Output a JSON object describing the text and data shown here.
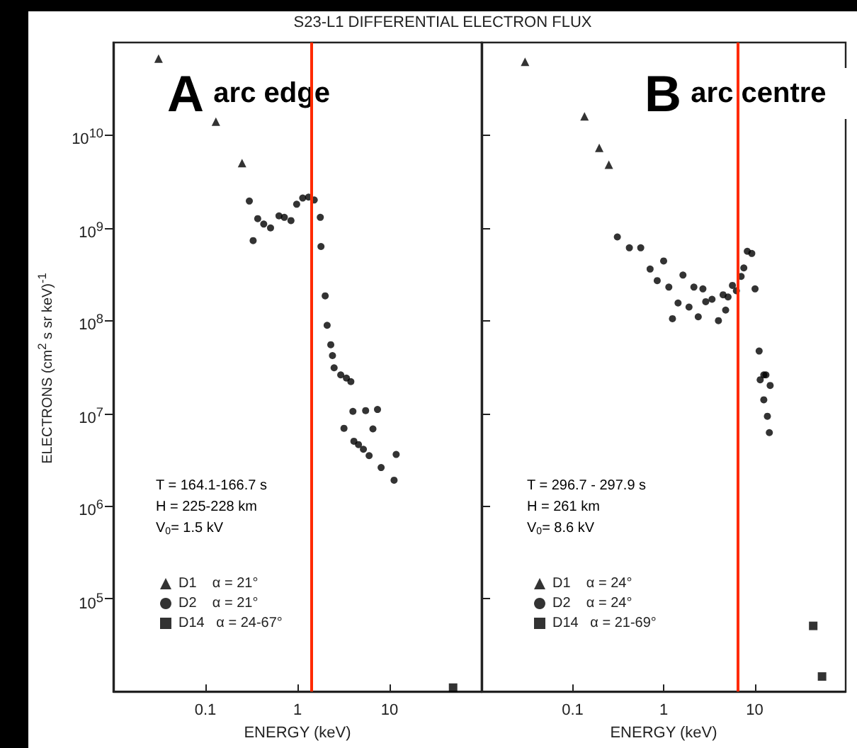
{
  "chart_data": [
    {
      "type": "scatter",
      "title": "S23-L1  DIFFERENTIAL ELECTRON FLUX",
      "xlabel": "ENERGY (keV)",
      "ylabel": "ELECTRONS (cm$^{2}$ s sr keV)$^{-1}$",
      "log": "xy",
      "legend": "bottom left",
      "xlim": [
        0.01,
        100
      ],
      "xticks": [
        0.1,
        1,
        10
      ],
      "ylim": [
        10000,
        100000000000
      ],
      "yticks": [
        {
          "value": 100000,
          "label": "10$^{5}$"
        },
        {
          "value": 1000000,
          "label": "10$^{6}$"
        },
        {
          "value": 10000000,
          "label": "10$^{7}$"
        },
        {
          "value": 100000000,
          "label": "10$^{8}$"
        },
        {
          "value": 1000000000,
          "label": "10$^{9}$"
        },
        {
          "value": 10000000000,
          "label": "10$^{10}$"
        }
      ],
      "annotations": [
        "A arc edge",
        "T = 164.1-166.7 s",
        "H = 225-228 km",
        "V$_{0}$= 1.5 kV"
      ],
      "ref_lines": [
        {
          "axis": "x",
          "value": 1.4,
          "color": "#ff2a00"
        }
      ],
      "series": [
        {
          "name": "D1    α = 21°",
          "color": "#000000",
          "marker": "triangle",
          "x": [
            0.031,
            0.13,
            0.25
          ],
          "values": [
            67000000000,
            14000000000,
            5000000000
          ]
        },
        {
          "name": "D2    α = 21°",
          "color": "#000000",
          "marker": "circle",
          "x": [
            0.3,
            0.33,
            0.37,
            0.43,
            0.51,
            0.63,
            0.72,
            0.85,
            0.98,
            1.14,
            1.32,
            1.52,
            1.77,
            1.8,
            2.0,
            2.1,
            2.3,
            2.4,
            2.5,
            2.95,
            3.4,
            3.8,
            4.0,
            5.5,
            7.4,
            3.2,
            6.6,
            4.1,
            4.6,
            5.2,
            6.0,
            8.1,
            11.8,
            11.2
          ],
          "values": [
            1950000000,
            730000000,
            1260000000,
            1100000000,
            1000000000,
            1350000000,
            1300000000,
            1200000000,
            1800000000,
            2100000000,
            2150000000,
            2000000000,
            1300000000,
            630000000,
            185000000,
            89000000,
            55000000,
            42000000,
            31000000,
            26000000,
            24000000,
            22000000,
            10500000,
            10700000,
            11000000,
            6900000,
            6800000,
            5000000,
            4600000,
            4100000,
            3500000,
            2600000,
            3600000,
            1900000
          ]
        },
        {
          "name": "D14   α = 24-67°",
          "color": "#000000",
          "marker": "square",
          "x": [
            49
          ],
          "values": [
            11000
          ]
        }
      ]
    },
    {
      "type": "scatter",
      "xlabel": "ENERGY (keV)",
      "log": "xy",
      "legend": "bottom left",
      "tick_labels": "x",
      "xlim": [
        0.01,
        100
      ],
      "xticks": [
        0.1,
        1,
        10
      ],
      "ylim": [
        10000,
        100000000000
      ],
      "yticks": [
        {
          "value": 100000,
          "label": "10$^{5}$"
        },
        {
          "value": 1000000,
          "label": "10$^{6}$"
        },
        {
          "value": 10000000,
          "label": "10$^{7}$"
        },
        {
          "value": 100000000,
          "label": "10$^{8}$"
        },
        {
          "value": 1000000000,
          "label": "10$^{9}$"
        },
        {
          "value": 10000000000,
          "label": "10$^{10}$"
        }
      ],
      "annotations": [
        "B arc centre",
        "T = 296.7 - 297.9 s",
        "H = 261 km",
        "V$_{0}$= 8.6 kV"
      ],
      "ref_lines": [
        {
          "axis": "x",
          "value": 6.6,
          "color": "#ff2a00"
        }
      ],
      "series": [
        {
          "name": "D1    α = 24°",
          "color": "#000000",
          "marker": "triangle",
          "x": [
            0.03,
            0.135,
            0.196,
            0.25
          ],
          "values": [
            62000000000,
            16000000000,
            7300000000,
            4800000000
          ]
        },
        {
          "name": "D2    α = 24°",
          "color": "#000000",
          "marker": "circle",
          "x": [
            0.31,
            0.42,
            0.56,
            0.71,
            1.0,
            0.85,
            1.14,
            1.63,
            1.44,
            1.9,
            1.25,
            2.15,
            2.7,
            2.4,
            2.9,
            3.4,
            4.0,
            4.5,
            5.1,
            4.8,
            5.7,
            6.3,
            7.1,
            7.6,
            8.3,
            9.3,
            10.1,
            11.2,
            12.6,
            11.5,
            13.3,
            14.8,
            12.6,
            13.8,
            14.5
          ],
          "values": [
            800000000,
            610000000,
            610000000,
            360000000,
            440000000,
            270000000,
            230000000,
            310000000,
            155000000,
            140000000,
            105000000,
            230000000,
            220000000,
            110000000,
            160000000,
            170000000,
            100000000,
            190000000,
            180000000,
            130000000,
            240000000,
            210000000,
            300000000,
            370000000,
            560000000,
            530000000,
            220000000,
            47000000,
            26000000,
            23000000,
            26000000,
            20000000,
            14000000,
            9300000,
            6200000
          ]
        },
        {
          "name": "D14   α = 21-69°",
          "color": "#000000",
          "marker": "square",
          "x": [
            44,
            55
          ],
          "values": [
            51000,
            14500
          ]
        }
      ]
    }
  ]
}
